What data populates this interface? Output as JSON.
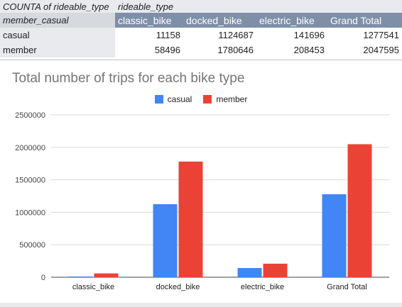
{
  "pivot": {
    "corner_label": "COUNTA of rideable_type",
    "column_group_label": "rideable_type",
    "row_group_label": "member_casual",
    "headers": [
      "classic_bike",
      "docked_bike",
      "electric_bike",
      "Grand Total"
    ],
    "rows": [
      {
        "label": "casual",
        "cells": [
          "11158",
          "1124687",
          "141696",
          "1277541"
        ]
      },
      {
        "label": "member",
        "cells": [
          "58496",
          "1780646",
          "208453",
          "2047595"
        ]
      }
    ]
  },
  "chart_data": {
    "type": "bar",
    "title": "Total number of trips for each bike type",
    "categories": [
      "classic_bike",
      "docked_bike",
      "electric_bike",
      "Grand Total"
    ],
    "series": [
      {
        "name": "casual",
        "color": "#4285f4",
        "values": [
          11158,
          1124687,
          141696,
          1277541
        ]
      },
      {
        "name": "member",
        "color": "#ea4335",
        "values": [
          58496,
          1780646,
          208453,
          2047595
        ]
      }
    ],
    "ylim": [
      0,
      2500000
    ],
    "yticks": [
      "0",
      "500000",
      "1000000",
      "1500000",
      "2000000",
      "2500000"
    ],
    "grid": true,
    "legend_position": "top"
  }
}
